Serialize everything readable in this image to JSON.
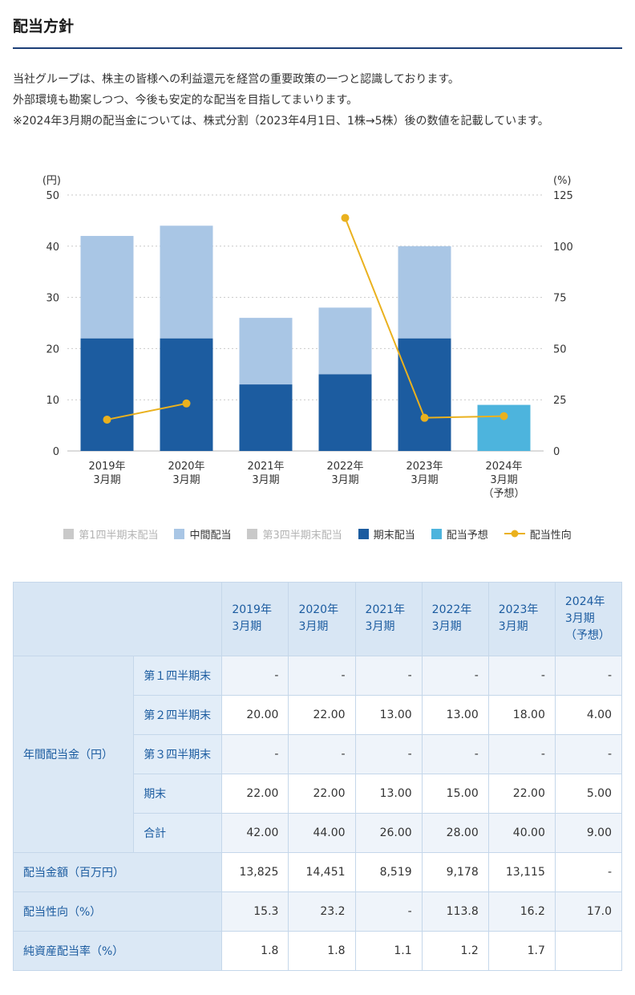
{
  "page": {
    "title": "配当方針",
    "paragraph": [
      "当社グループは、株主の皆様への利益還元を経営の重要政策の一つと認識しております。",
      "外部環境も勘案しつつ、今後も安定的な配当を目指してまいります。",
      "※2024年3月期の配当金については、株式分割（2023年4月1日、1株→5株）後の数値を記載しています。"
    ]
  },
  "chart_data": {
    "type": "bar",
    "subtype": "stacked-bar-with-line",
    "categories": [
      [
        "2019年",
        "3月期"
      ],
      [
        "2020年",
        "3月期"
      ],
      [
        "2021年",
        "3月期"
      ],
      [
        "2022年",
        "3月期"
      ],
      [
        "2023年",
        "3月期"
      ],
      [
        "2024年",
        "3月期",
        "（予想）"
      ]
    ],
    "left_axis": {
      "unit": "(円)",
      "min": 0,
      "max": 50,
      "ticks": [
        0,
        10,
        20,
        30,
        40,
        50
      ]
    },
    "right_axis": {
      "unit": "(%)",
      "min": 0,
      "max": 125,
      "ticks": [
        0,
        25,
        50,
        75,
        100,
        125
      ]
    },
    "series": [
      {
        "name": "期末配当",
        "type": "bar",
        "color": "#1c5ca0",
        "values": [
          22,
          22,
          13,
          15,
          22,
          null
        ]
      },
      {
        "name": "中間配当",
        "type": "bar",
        "color": "#a9c6e5",
        "values": [
          20,
          22,
          13,
          13,
          18,
          null
        ]
      },
      {
        "name": "配当予想",
        "type": "bar",
        "color": "#4db4dd",
        "values": [
          null,
          null,
          null,
          null,
          null,
          9
        ]
      },
      {
        "name": "配当性向",
        "type": "line",
        "axis": "right",
        "color": "#eab11e",
        "values": [
          15.3,
          23.2,
          null,
          113.8,
          16.2,
          17.0
        ]
      }
    ],
    "legend_position": "bottom",
    "grid": true,
    "legend": [
      {
        "label": "第1四半期末配当",
        "type": "square",
        "color": "#c9c9c9",
        "inactive": true
      },
      {
        "label": "中間配当",
        "type": "square",
        "color": "#a9c6e5",
        "inactive": false
      },
      {
        "label": "第3四半期末配当",
        "type": "square",
        "color": "#c9c9c9",
        "inactive": true
      },
      {
        "label": "期末配当",
        "type": "square",
        "color": "#1c5ca0",
        "inactive": false
      },
      {
        "label": "配当予想",
        "type": "square",
        "color": "#4db4dd",
        "inactive": false
      },
      {
        "label": "配当性向",
        "type": "line",
        "color": "#eab11e",
        "inactive": false
      }
    ]
  },
  "table": {
    "col_headers": [
      [
        "2019年",
        "3月期"
      ],
      [
        "2020年",
        "3月期"
      ],
      [
        "2021年",
        "3月期"
      ],
      [
        "2022年",
        "3月期"
      ],
      [
        "2023年",
        "3月期"
      ],
      [
        "2024年",
        "3月期",
        "（予想）"
      ]
    ],
    "group_label": "年間配当金（円）",
    "sub_rows": [
      {
        "label": "第１四半期末",
        "values": [
          "-",
          "-",
          "-",
          "-",
          "-",
          "-"
        ]
      },
      {
        "label": "第２四半期末",
        "values": [
          "20.00",
          "22.00",
          "13.00",
          "13.00",
          "18.00",
          "4.00"
        ]
      },
      {
        "label": "第３四半期末",
        "values": [
          "-",
          "-",
          "-",
          "-",
          "-",
          "-"
        ]
      },
      {
        "label": "期末",
        "values": [
          "22.00",
          "22.00",
          "13.00",
          "15.00",
          "22.00",
          "5.00"
        ]
      },
      {
        "label": "合計",
        "values": [
          "42.00",
          "44.00",
          "26.00",
          "28.00",
          "40.00",
          "9.00"
        ]
      }
    ],
    "rows": [
      {
        "label": "配当金額（百万円）",
        "values": [
          "13,825",
          "14,451",
          "8,519",
          "9,178",
          "13,115",
          "-"
        ]
      },
      {
        "label": "配当性向（%）",
        "values": [
          "15.3",
          "23.2",
          "-",
          "113.8",
          "16.2",
          "17.0"
        ]
      },
      {
        "label": "純資産配当率（%）",
        "values": [
          "1.8",
          "1.8",
          "1.1",
          "1.2",
          "1.7",
          ""
        ]
      }
    ]
  }
}
